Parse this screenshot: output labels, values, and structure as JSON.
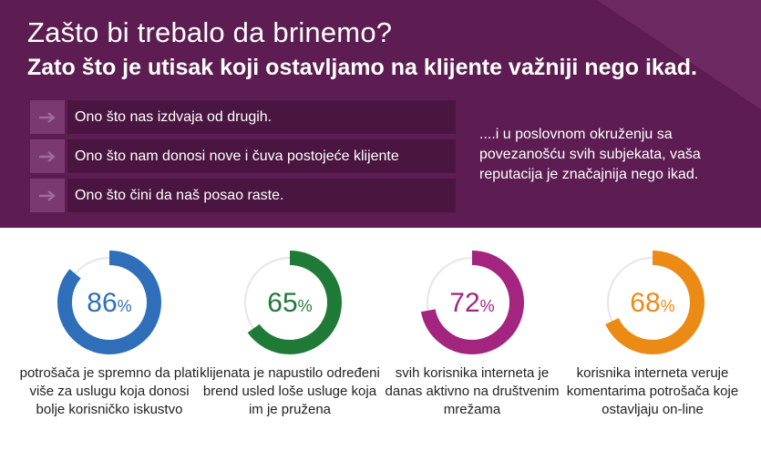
{
  "header": {
    "title": "Zašto bi trebalo da brinemo?",
    "subtitle": "Zato što je utisak koji ostavljamo na klijente važniji nego ikad."
  },
  "bullets": [
    "Ono što nas izdvaja od drugih.",
    "Ono što nam donosi nove i čuva postojeće klijente",
    "Ono što čini da naš posao raste."
  ],
  "side_note": "....i u poslovnom okruženju sa povezanošću svih subjekata, vaša reputacija je značajnija nego ikad.",
  "stats": [
    {
      "value": 86,
      "unit": "%",
      "color": "#2f6fba",
      "caption": "potrošača je spremno da plati više za uslugu koja donosi bolje korisničko iskustvo"
    },
    {
      "value": 65,
      "unit": "%",
      "color": "#1f7a37",
      "caption": "klijenata je napustilo određeni brend usled loše usluge koja im je pružena"
    },
    {
      "value": 72,
      "unit": "%",
      "color": "#a3257f",
      "caption": "svih korisnika interneta je danas aktivno na društvenim mrežama"
    },
    {
      "value": 68,
      "unit": "%",
      "color": "#ec8a16",
      "caption": "korisnika interneta veruje komentarima potrošača  koje ostavljaju on-line"
    }
  ],
  "colors": {
    "banner": "#5d1d52",
    "ring_track": "#e6e6e6",
    "arrow": "#a16a98"
  }
}
